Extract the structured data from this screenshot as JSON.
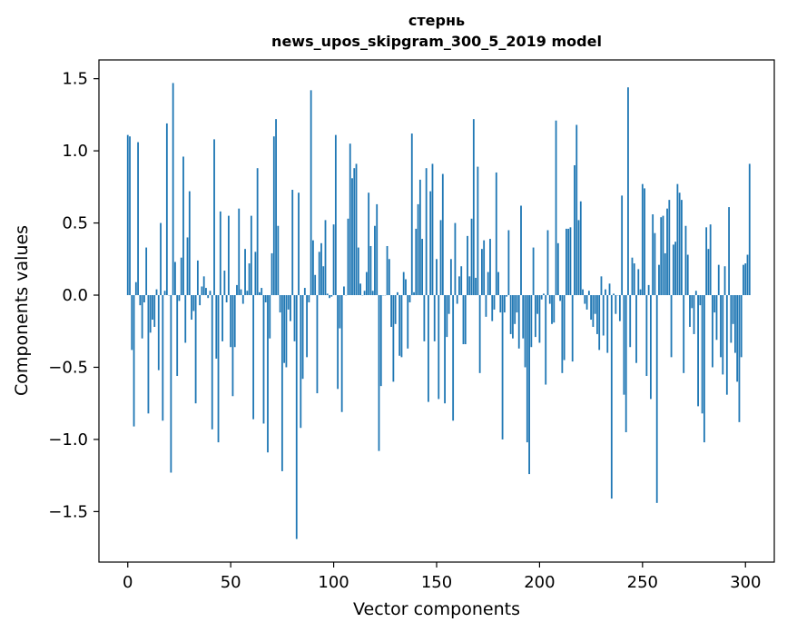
{
  "chart_data": {
    "type": "bar",
    "title": "стернь",
    "subtitle": "news_upos_skipgram_300_5_2019 model",
    "xlabel": "Vector components",
    "ylabel": "Components values",
    "xlim": [
      -14,
      314
    ],
    "ylim": [
      -1.85,
      1.63
    ],
    "xticks": [
      0,
      50,
      100,
      150,
      200,
      250,
      300
    ],
    "xtick_labels": [
      "0",
      "50",
      "100",
      "150",
      "200",
      "250",
      "300"
    ],
    "yticks": [
      -1.5,
      -1.0,
      -0.5,
      0.0,
      0.5,
      1.0,
      1.5
    ],
    "ytick_labels": [
      "−1.5",
      "−1.0",
      "−0.5",
      "0.0",
      "0.5",
      "1.0",
      "1.5"
    ],
    "bar_color": "#1f77b4",
    "grid": false,
    "values": [
      1.11,
      1.1,
      -0.38,
      -0.91,
      0.09,
      1.06,
      -0.07,
      -0.3,
      -0.05,
      0.33,
      -0.82,
      -0.26,
      -0.17,
      -0.22,
      0.04,
      -0.52,
      0.5,
      -0.87,
      0.03,
      1.19,
      0.0,
      -1.23,
      1.47,
      0.23,
      -0.56,
      -0.04,
      0.26,
      0.96,
      -0.33,
      0.4,
      0.72,
      -0.17,
      -0.11,
      -0.75,
      0.24,
      -0.07,
      0.06,
      0.13,
      0.05,
      -0.02,
      0.03,
      -0.93,
      1.08,
      -0.44,
      -1.02,
      0.58,
      -0.32,
      0.17,
      -0.05,
      0.55,
      -0.36,
      -0.7,
      -0.36,
      0.07,
      0.6,
      0.04,
      -0.06,
      0.32,
      0.03,
      0.22,
      0.55,
      -0.86,
      0.3,
      0.88,
      0.02,
      0.05,
      -0.89,
      -0.05,
      -1.09,
      -0.3,
      0.29,
      1.1,
      1.22,
      0.48,
      -0.12,
      -1.22,
      -0.47,
      -0.5,
      -0.1,
      -0.18,
      0.73,
      -0.32,
      -1.69,
      0.71,
      -0.92,
      -0.58,
      0.05,
      -0.43,
      -0.05,
      1.42,
      0.38,
      0.14,
      -0.68,
      0.3,
      0.36,
      0.2,
      0.52,
      0.01,
      -0.02,
      -0.01,
      0.49,
      1.11,
      -0.65,
      -0.23,
      -0.81,
      0.06,
      0.0,
      0.53,
      1.05,
      0.81,
      0.88,
      0.91,
      0.33,
      0.08,
      0.0,
      0.03,
      0.16,
      0.71,
      0.34,
      0.03,
      0.48,
      0.63,
      -1.08,
      -0.63,
      0.0,
      0.0,
      0.34,
      0.25,
      -0.22,
      -0.6,
      -0.2,
      0.02,
      -0.42,
      -0.43,
      0.16,
      0.11,
      -0.37,
      -0.05,
      1.12,
      0.02,
      0.46,
      0.63,
      0.8,
      0.39,
      -0.32,
      0.88,
      -0.74,
      0.72,
      0.91,
      -0.32,
      0.25,
      -0.72,
      0.52,
      0.84,
      -0.75,
      -0.29,
      -0.13,
      0.25,
      -0.87,
      0.5,
      -0.06,
      0.13,
      0.2,
      -0.34,
      -0.34,
      0.41,
      0.13,
      0.53,
      1.22,
      0.12,
      0.89,
      -0.54,
      0.32,
      0.38,
      -0.15,
      0.16,
      0.39,
      -0.18,
      -0.1,
      0.85,
      0.16,
      -0.12,
      -1.0,
      -0.12,
      -0.01,
      0.45,
      -0.27,
      -0.3,
      -0.2,
      -0.12,
      -0.37,
      0.62,
      -0.3,
      -0.5,
      -1.02,
      -1.24,
      -0.36,
      0.33,
      -0.29,
      -0.13,
      -0.33,
      -0.03,
      0.01,
      -0.62,
      0.45,
      -0.06,
      -0.2,
      -0.19,
      1.21,
      0.36,
      -0.04,
      -0.54,
      -0.45,
      0.46,
      0.46,
      0.47,
      -0.46,
      0.9,
      1.18,
      0.52,
      0.65,
      0.04,
      -0.06,
      -0.1,
      0.03,
      -0.17,
      -0.22,
      -0.13,
      -0.27,
      -0.38,
      0.13,
      -0.28,
      0.04,
      -0.4,
      0.08,
      -1.41,
      0.01,
      -0.13,
      0.0,
      -0.18,
      0.69,
      -0.69,
      -0.95,
      1.44,
      -0.36,
      0.26,
      0.22,
      -0.47,
      0.18,
      0.04,
      0.77,
      0.74,
      -0.56,
      0.07,
      -0.72,
      0.56,
      0.43,
      -1.44,
      0.21,
      0.54,
      0.55,
      0.29,
      0.6,
      0.66,
      -0.43,
      0.35,
      0.37,
      0.77,
      0.71,
      0.66,
      -0.54,
      0.48,
      0.28,
      -0.22,
      -0.09,
      -0.27,
      0.03,
      -0.77,
      -0.07,
      -0.82,
      -1.02,
      0.47,
      0.32,
      0.49,
      -0.5,
      -0.12,
      -0.31,
      0.21,
      -0.43,
      -0.55,
      0.2,
      -0.69,
      0.61,
      -0.33,
      -0.2,
      -0.4,
      -0.6,
      -0.88,
      -0.43,
      0.21,
      0.22,
      0.28,
      0.91
    ]
  }
}
